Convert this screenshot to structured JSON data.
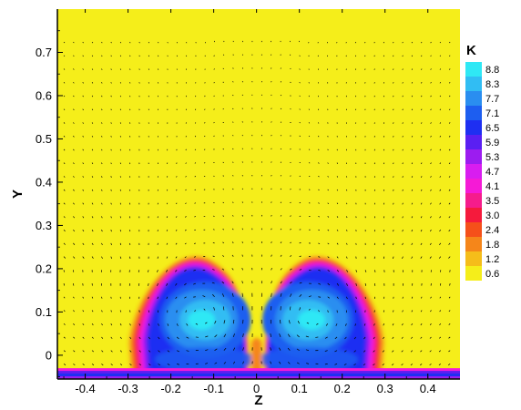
{
  "chart_data": {
    "type": "heatmap",
    "title": "",
    "xlabel": "Z",
    "ylabel": "Y",
    "xlim": [
      -0.465,
      0.475
    ],
    "ylim": [
      -0.055,
      0.8
    ],
    "x_ticks": [
      "-0.4",
      "-0.3",
      "-0.2",
      "-0.1",
      "0",
      "0.1",
      "0.2",
      "0.3",
      "0.4"
    ],
    "x_tick_values": [
      -0.4,
      -0.3,
      -0.2,
      -0.1,
      0,
      0.1,
      0.2,
      0.3,
      0.4
    ],
    "y_ticks": [
      "0",
      "0.1",
      "0.2",
      "0.3",
      "0.4",
      "0.5",
      "0.6",
      "0.7"
    ],
    "y_tick_values": [
      0,
      0.1,
      0.2,
      0.3,
      0.4,
      0.5,
      0.6,
      0.7
    ],
    "colorbar": {
      "title": "K",
      "levels": [
        {
          "label": "8.8",
          "value": 8.8,
          "color": "#2fe8f5"
        },
        {
          "label": "8.3",
          "value": 8.3,
          "color": "#31bdf3"
        },
        {
          "label": "7.7",
          "value": 7.7,
          "color": "#2a8ef0"
        },
        {
          "label": "7.1",
          "value": 7.1,
          "color": "#1d5ef0"
        },
        {
          "label": "6.5",
          "value": 6.5,
          "color": "#1e2ff2"
        },
        {
          "label": "5.9",
          "value": 5.9,
          "color": "#5a1ff2"
        },
        {
          "label": "5.3",
          "value": 5.3,
          "color": "#9c1cf0"
        },
        {
          "label": "4.7",
          "value": 4.7,
          "color": "#d81df0"
        },
        {
          "label": "4.1",
          "value": 4.1,
          "color": "#f51ad6"
        },
        {
          "label": "3.5",
          "value": 3.5,
          "color": "#f51c8c"
        },
        {
          "label": "3.0",
          "value": 3.0,
          "color": "#f51a3c"
        },
        {
          "label": "2.4",
          "value": 2.4,
          "color": "#f5501a"
        },
        {
          "label": "1.8",
          "value": 1.8,
          "color": "#f5861a"
        },
        {
          "label": "1.2",
          "value": 1.2,
          "color": "#f5bd1a"
        },
        {
          "label": "0.6",
          "value": 0.6,
          "color": "#f5ee1a"
        }
      ]
    },
    "field": {
      "background_value": 0.6,
      "vortices": [
        {
          "z_center": -0.12,
          "y_center": 0.09,
          "peak_value": 8.8
        },
        {
          "z_center": 0.12,
          "y_center": 0.09,
          "peak_value": 8.8
        }
      ],
      "high_region_extent": {
        "z": [
          -0.3,
          0.3
        ],
        "y": [
          -0.05,
          0.21
        ]
      },
      "wall_layer_y": [
        -0.055,
        -0.03
      ]
    },
    "vector_field": true,
    "grid": false,
    "legend_position": "right"
  }
}
